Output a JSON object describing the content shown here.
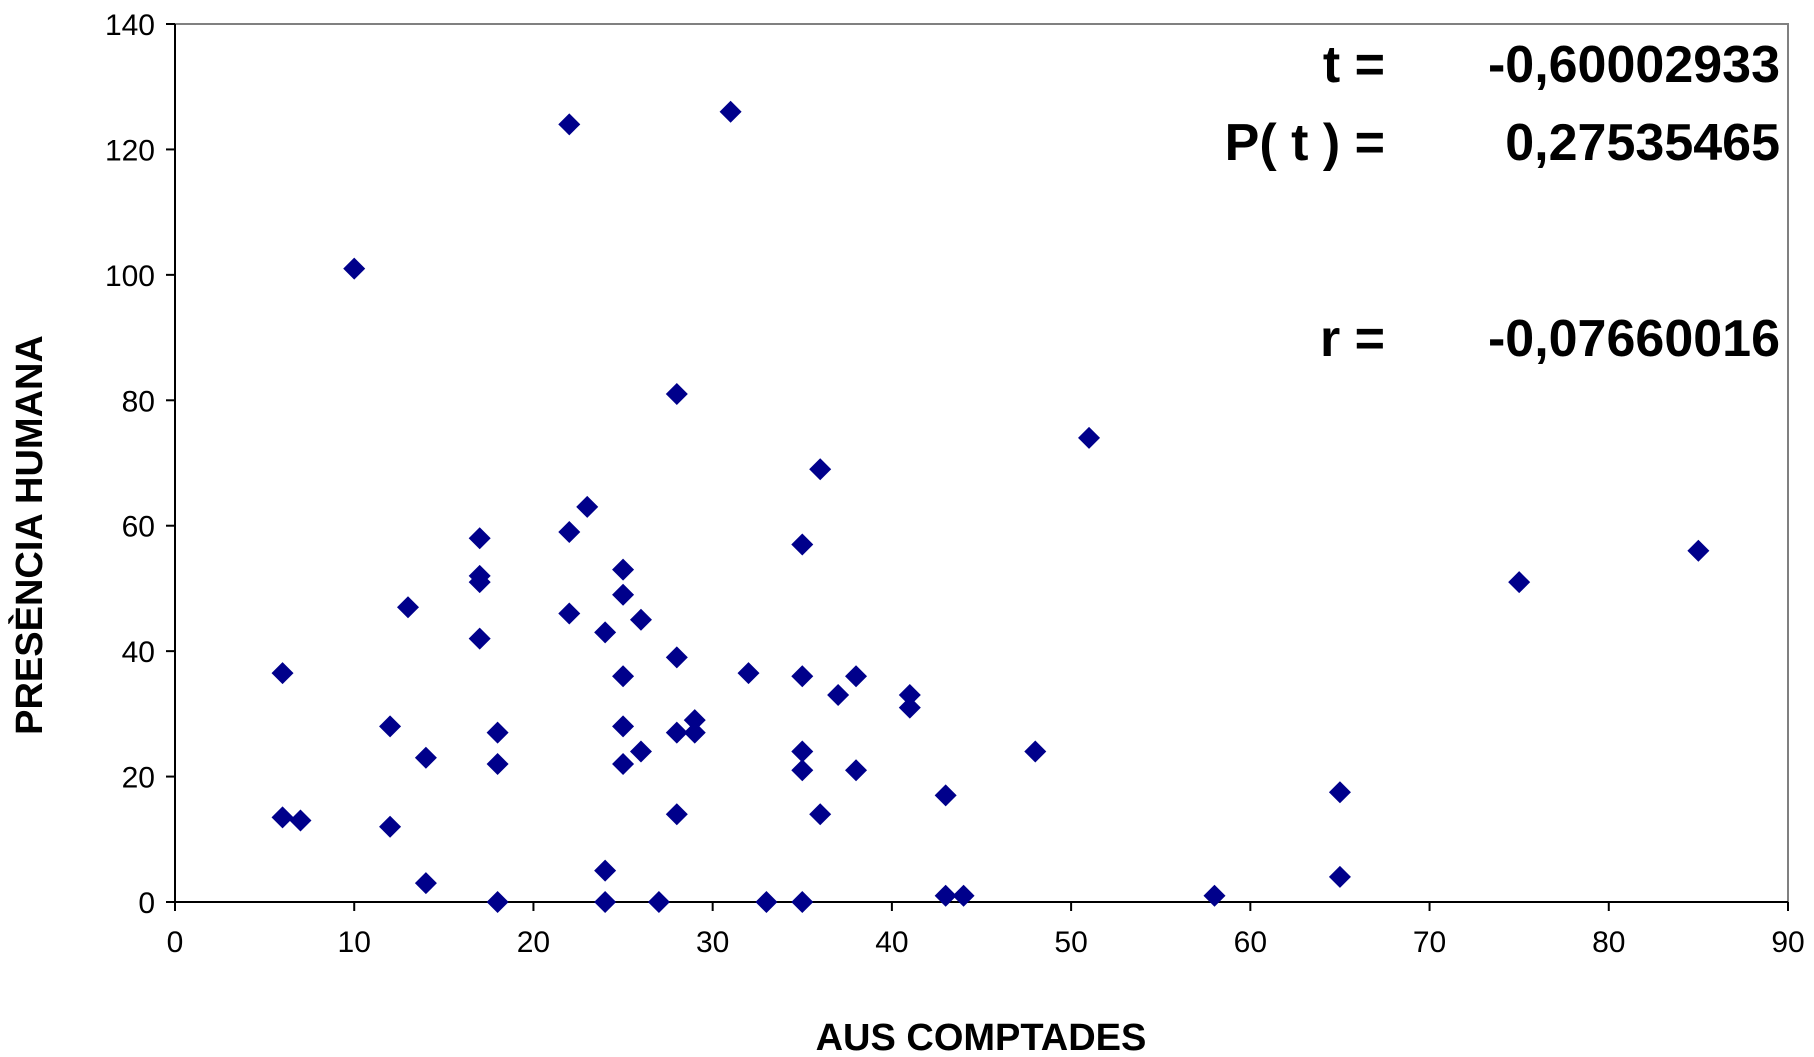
{
  "chart_data": {
    "type": "scatter",
    "xlabel": "AUS COMPTADES",
    "ylabel": "PRESÈNCIA HUMANA",
    "xlim": [
      0,
      90
    ],
    "ylim": [
      0,
      140
    ],
    "x_ticks": [
      "0",
      "10",
      "20",
      "30",
      "40",
      "50",
      "60",
      "70",
      "80",
      "90"
    ],
    "y_ticks": [
      "0",
      "20",
      "40",
      "60",
      "80",
      "100",
      "120",
      "140"
    ],
    "grid": false,
    "legend": "none",
    "marker": "diamond",
    "marker_color": "#00008B",
    "annotations": [
      {
        "label": "t =",
        "value": "-0,60002933"
      },
      {
        "label": "P( t ) =",
        "value": "0,27535465"
      },
      {
        "label": "r =",
        "value": "-0,07660016"
      }
    ],
    "points": [
      {
        "x": 6,
        "y": 36.5
      },
      {
        "x": 6,
        "y": 13.5
      },
      {
        "x": 7,
        "y": 13
      },
      {
        "x": 10,
        "y": 101
      },
      {
        "x": 12,
        "y": 28
      },
      {
        "x": 12,
        "y": 12
      },
      {
        "x": 13,
        "y": 47
      },
      {
        "x": 14,
        "y": 23
      },
      {
        "x": 14,
        "y": 3
      },
      {
        "x": 17,
        "y": 58
      },
      {
        "x": 17,
        "y": 52
      },
      {
        "x": 17,
        "y": 51
      },
      {
        "x": 17,
        "y": 42
      },
      {
        "x": 18,
        "y": 27
      },
      {
        "x": 18,
        "y": 22
      },
      {
        "x": 18,
        "y": 0
      },
      {
        "x": 22,
        "y": 124
      },
      {
        "x": 22,
        "y": 59
      },
      {
        "x": 22,
        "y": 46
      },
      {
        "x": 23,
        "y": 63
      },
      {
        "x": 24,
        "y": 43
      },
      {
        "x": 24,
        "y": 5
      },
      {
        "x": 24,
        "y": 0
      },
      {
        "x": 25,
        "y": 53
      },
      {
        "x": 25,
        "y": 49
      },
      {
        "x": 25,
        "y": 36
      },
      {
        "x": 25,
        "y": 28
      },
      {
        "x": 25,
        "y": 22
      },
      {
        "x": 26,
        "y": 45
      },
      {
        "x": 26,
        "y": 24
      },
      {
        "x": 27,
        "y": 0
      },
      {
        "x": 28,
        "y": 81
      },
      {
        "x": 28,
        "y": 39
      },
      {
        "x": 28,
        "y": 27
      },
      {
        "x": 28,
        "y": 14
      },
      {
        "x": 29,
        "y": 29
      },
      {
        "x": 29,
        "y": 27
      },
      {
        "x": 31,
        "y": 126
      },
      {
        "x": 32,
        "y": 36.5
      },
      {
        "x": 33,
        "y": 0
      },
      {
        "x": 35,
        "y": 57
      },
      {
        "x": 35,
        "y": 36
      },
      {
        "x": 35,
        "y": 24
      },
      {
        "x": 35,
        "y": 21
      },
      {
        "x": 35,
        "y": 0
      },
      {
        "x": 36,
        "y": 69
      },
      {
        "x": 36,
        "y": 14
      },
      {
        "x": 37,
        "y": 33
      },
      {
        "x": 38,
        "y": 36
      },
      {
        "x": 38,
        "y": 21
      },
      {
        "x": 41,
        "y": 33
      },
      {
        "x": 41,
        "y": 31
      },
      {
        "x": 43,
        "y": 17
      },
      {
        "x": 43,
        "y": 1
      },
      {
        "x": 44,
        "y": 1
      },
      {
        "x": 48,
        "y": 24
      },
      {
        "x": 51,
        "y": 74
      },
      {
        "x": 58,
        "y": 1
      },
      {
        "x": 65,
        "y": 17.5
      },
      {
        "x": 65,
        "y": 4
      },
      {
        "x": 75,
        "y": 51
      },
      {
        "x": 85,
        "y": 56
      }
    ]
  }
}
